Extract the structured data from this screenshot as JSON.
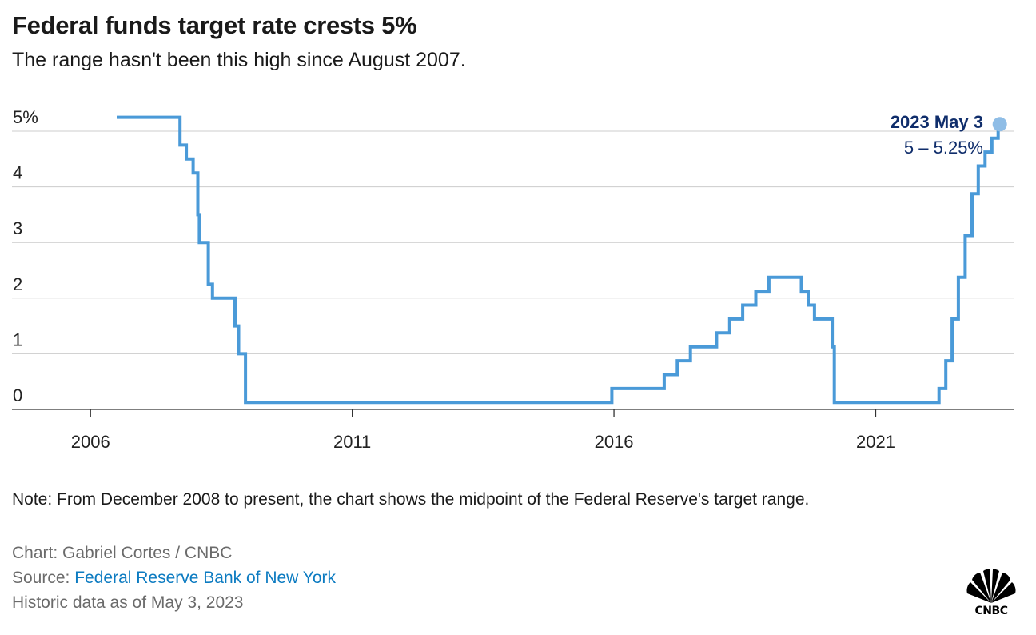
{
  "header": {
    "title": "Federal funds target rate crests 5%",
    "subtitle": "The range hasn't been this high since August 2007."
  },
  "chart_data": {
    "type": "line",
    "line_style": "step",
    "series_color": "#4a9ad8",
    "annotation": {
      "title": "2023 May 3",
      "value_label": "5 – 5.25%",
      "color": "#0f2d6b",
      "x": 2023.34,
      "y": 5.125
    },
    "x_ticks": [
      "2006",
      "2011",
      "2016",
      "2021"
    ],
    "x_tick_values": [
      2006,
      2011,
      2016,
      2021
    ],
    "y_ticks": [
      "5%",
      "4",
      "3",
      "2",
      "1",
      "0"
    ],
    "y_tick_values": [
      5,
      4,
      3,
      2,
      1,
      0
    ],
    "xlim": [
      2004.5,
      2023.65
    ],
    "ylim": [
      0,
      5.25
    ],
    "grid": "horizontal",
    "series": [
      {
        "points": [
          [
            2006.5,
            5.25
          ],
          [
            2007.71,
            5.25
          ],
          [
            2007.71,
            4.75
          ],
          [
            2007.83,
            4.75
          ],
          [
            2007.83,
            4.5
          ],
          [
            2007.96,
            4.5
          ],
          [
            2007.96,
            4.25
          ],
          [
            2008.05,
            4.25
          ],
          [
            2008.05,
            3.5
          ],
          [
            2008.08,
            3.5
          ],
          [
            2008.08,
            3.0
          ],
          [
            2008.25,
            3.0
          ],
          [
            2008.25,
            2.25
          ],
          [
            2008.33,
            2.25
          ],
          [
            2008.33,
            2.0
          ],
          [
            2008.76,
            2.0
          ],
          [
            2008.76,
            1.5
          ],
          [
            2008.83,
            1.5
          ],
          [
            2008.83,
            1.0
          ],
          [
            2008.96,
            1.0
          ],
          [
            2008.96,
            0.125
          ],
          [
            2015.96,
            0.125
          ],
          [
            2015.96,
            0.375
          ],
          [
            2016.96,
            0.375
          ],
          [
            2016.96,
            0.625
          ],
          [
            2017.21,
            0.625
          ],
          [
            2017.21,
            0.875
          ],
          [
            2017.46,
            0.875
          ],
          [
            2017.46,
            1.125
          ],
          [
            2017.96,
            1.125
          ],
          [
            2017.96,
            1.375
          ],
          [
            2018.21,
            1.375
          ],
          [
            2018.21,
            1.625
          ],
          [
            2018.46,
            1.625
          ],
          [
            2018.46,
            1.875
          ],
          [
            2018.71,
            1.875
          ],
          [
            2018.71,
            2.125
          ],
          [
            2018.96,
            2.125
          ],
          [
            2018.96,
            2.375
          ],
          [
            2019.58,
            2.375
          ],
          [
            2019.58,
            2.125
          ],
          [
            2019.71,
            2.125
          ],
          [
            2019.71,
            1.875
          ],
          [
            2019.83,
            1.875
          ],
          [
            2019.83,
            1.625
          ],
          [
            2020.17,
            1.625
          ],
          [
            2020.17,
            1.125
          ],
          [
            2020.21,
            1.125
          ],
          [
            2020.21,
            0.125
          ],
          [
            2022.21,
            0.125
          ],
          [
            2022.21,
            0.375
          ],
          [
            2022.34,
            0.375
          ],
          [
            2022.34,
            0.875
          ],
          [
            2022.46,
            0.875
          ],
          [
            2022.46,
            1.625
          ],
          [
            2022.58,
            1.625
          ],
          [
            2022.58,
            2.375
          ],
          [
            2022.71,
            2.375
          ],
          [
            2022.71,
            3.125
          ],
          [
            2022.84,
            3.125
          ],
          [
            2022.84,
            3.875
          ],
          [
            2022.96,
            3.875
          ],
          [
            2022.96,
            4.375
          ],
          [
            2023.09,
            4.375
          ],
          [
            2023.09,
            4.625
          ],
          [
            2023.22,
            4.625
          ],
          [
            2023.22,
            4.875
          ],
          [
            2023.34,
            4.875
          ],
          [
            2023.34,
            5.125
          ]
        ]
      }
    ]
  },
  "footer": {
    "note": "Note: From December 2008 to present, the chart shows the midpoint of the Federal Reserve's target range.",
    "credit": "Chart: Gabriel Cortes / CNBC",
    "source_label": "Source: ",
    "source_link": "Federal Reserve Bank of New York",
    "as_of": "Historic data as of May 3, 2023"
  },
  "logo": {
    "text": "CNBC",
    "icon": "peacock-icon"
  }
}
